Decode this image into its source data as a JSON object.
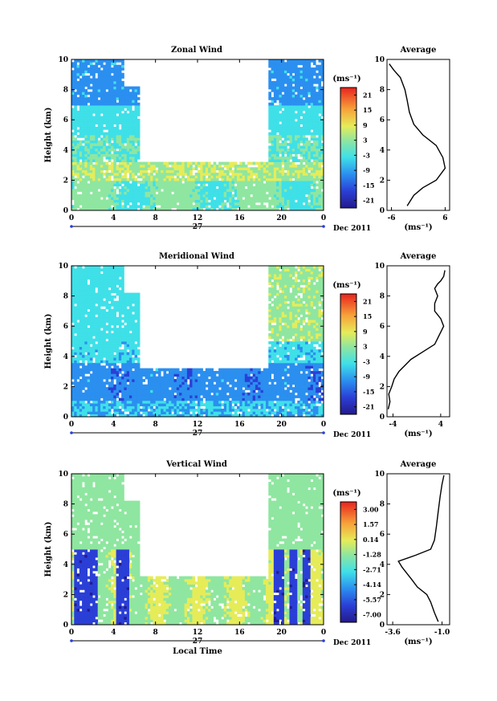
{
  "chart_data": [
    {
      "type": "heatmap",
      "title": "Zonal Wind",
      "ylabel": "Height (km)",
      "ylim": [
        0,
        10
      ],
      "yticks": [
        "0",
        "2",
        "4",
        "6",
        "8",
        "10"
      ],
      "xticks": [
        "0",
        "4",
        "8",
        "12",
        "16",
        "20",
        "0"
      ],
      "xlim": [
        0,
        24
      ],
      "date_day": "27",
      "date_label": "Dec 2011",
      "colorbar": {
        "unit": "(ms⁻¹)",
        "ticks": [
          "21",
          "15",
          "9",
          "3",
          "-3",
          "-9",
          "-15",
          "-21"
        ],
        "range": [
          -24,
          24
        ]
      },
      "profile": {
        "title": "Average",
        "xticks": [
          "-6",
          "6"
        ],
        "xlim": [
          -7,
          7
        ],
        "xlabel": "(ms⁻¹)",
        "ylim": [
          0,
          10
        ],
        "yticks": [
          "0",
          "2",
          "4",
          "6",
          "8",
          "10"
        ],
        "x": [
          -2.5,
          -1,
          1,
          4,
          6,
          5.5,
          4,
          1,
          -1,
          -2,
          -2.5,
          -3,
          -4,
          -5.5,
          -6.5
        ],
        "y": [
          0.3,
          1,
          1.5,
          2,
          2.8,
          3.5,
          4.3,
          5,
          5.7,
          6.5,
          7.3,
          8,
          8.8,
          9.3,
          9.7
        ]
      },
      "grid": false
    },
    {
      "type": "heatmap",
      "title": "Meridional Wind",
      "ylabel": "Height (km)",
      "ylim": [
        0,
        10
      ],
      "yticks": [
        "0",
        "2",
        "4",
        "6",
        "8",
        "10"
      ],
      "xticks": [
        "0",
        "4",
        "8",
        "12",
        "16",
        "20",
        "0"
      ],
      "xlim": [
        0,
        24
      ],
      "date_day": "27",
      "date_label": "Dec 2011",
      "colorbar": {
        "unit": "(ms⁻¹)",
        "ticks": [
          "21",
          "15",
          "9",
          "3",
          "-3",
          "-9",
          "-15",
          "-21"
        ],
        "range": [
          -24,
          24
        ]
      },
      "profile": {
        "title": "Average",
        "xticks": [
          "-4",
          "4"
        ],
        "xlim": [
          -5,
          5.5
        ],
        "xlabel": "(ms⁻¹)",
        "ylim": [
          0,
          10
        ],
        "yticks": [
          "0",
          "2",
          "4",
          "6",
          "8",
          "10"
        ],
        "x": [
          -4.8,
          -4.5,
          -4.7,
          -4.2,
          -3.8,
          -3,
          -1,
          1,
          3,
          4.5,
          4,
          3,
          3,
          3.5,
          3,
          3.5,
          4,
          4.5,
          4.7
        ],
        "y": [
          0.5,
          1,
          1.5,
          2,
          2.5,
          3,
          3.8,
          4.3,
          4.8,
          6,
          6.5,
          7,
          7.5,
          8,
          8.5,
          8.8,
          9,
          9.3,
          9.7
        ]
      },
      "grid": false
    },
    {
      "type": "heatmap",
      "title": "Vertical Wind",
      "ylabel": "Height (km)",
      "xlabel": "Local Time",
      "ylim": [
        0,
        10
      ],
      "yticks": [
        "0",
        "2",
        "4",
        "6",
        "8",
        "10"
      ],
      "xticks": [
        "0",
        "4",
        "8",
        "12",
        "16",
        "20",
        "0"
      ],
      "xlim": [
        0,
        24
      ],
      "date_day": "27",
      "date_label": "Dec 2011",
      "colorbar": {
        "unit": "(ms⁻¹)",
        "ticks": [
          "3.00",
          "1.57",
          "0.14",
          "-1.28",
          "-2.71",
          "-4.14",
          "-5.57",
          "-7.00"
        ],
        "range": [
          -7.7,
          3.7
        ]
      },
      "profile": {
        "title": "Average",
        "xticks": [
          "-3.6",
          "-1.0"
        ],
        "xlim": [
          -3.9,
          -0.6
        ],
        "xlabel": "(ms⁻¹)",
        "ylim": [
          0,
          10
        ],
        "yticks": [
          "0",
          "2",
          "4",
          "6",
          "8",
          "10"
        ],
        "x": [
          -1.2,
          -1.4,
          -1.6,
          -1.8,
          -2.3,
          -2.6,
          -3.1,
          -3.3,
          -2.4,
          -1.6,
          -1.4,
          -1.3,
          -1.2,
          -1.1,
          -1.0,
          -0.9
        ],
        "y": [
          0.2,
          0.8,
          1.5,
          2,
          2.5,
          3,
          3.8,
          4.2,
          4.6,
          5,
          5.6,
          6.5,
          7.5,
          8.5,
          9.3,
          9.9
        ]
      },
      "grid": false
    }
  ]
}
